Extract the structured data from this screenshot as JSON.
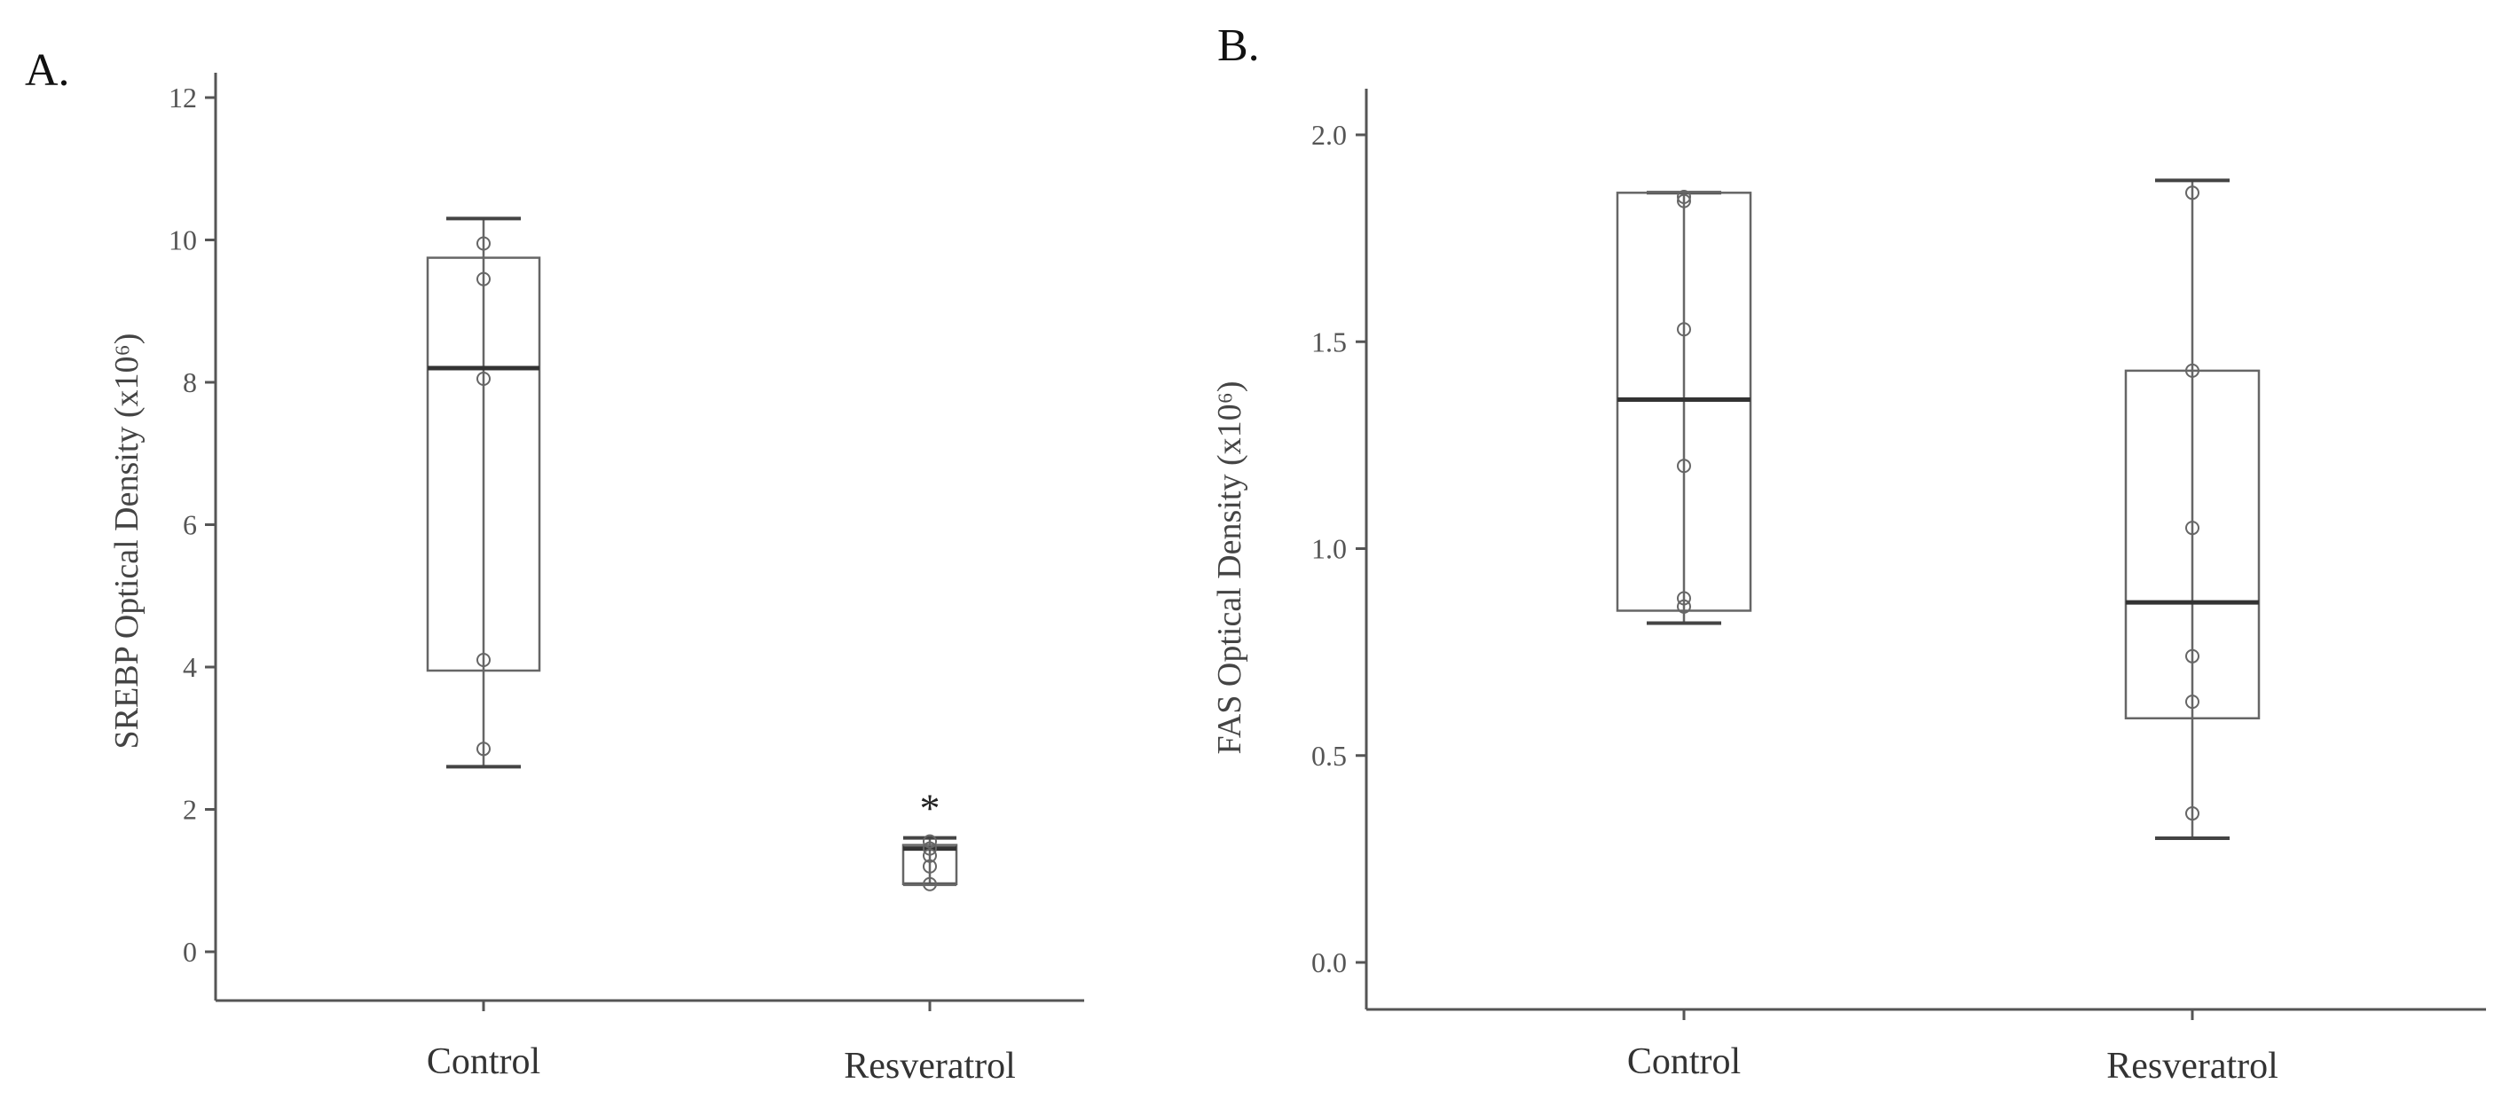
{
  "chart_data": [
    {
      "type": "box",
      "panel_label": "A.",
      "ylabel": "SREBP Optical Density (x10⁶)",
      "ylim": [
        0,
        12
      ],
      "yticks": [
        "0",
        "2",
        "4",
        "6",
        "8",
        "10",
        "12"
      ],
      "categories": [
        "Control",
        "Resveratrol"
      ],
      "boxes": [
        {
          "category": "Control",
          "min": 2.6,
          "q1": 3.95,
          "median": 8.2,
          "q3": 9.75,
          "max": 10.3,
          "points": [
            2.85,
            4.1,
            8.05,
            9.45,
            9.95
          ],
          "annotation": ""
        },
        {
          "category": "Resveratrol",
          "min": 0.95,
          "q1": 0.95,
          "median": 1.45,
          "q3": 1.5,
          "max": 1.6,
          "points": [
            0.95,
            1.2,
            1.35,
            1.45,
            1.55
          ],
          "annotation": "*"
        }
      ]
    },
    {
      "type": "box",
      "panel_label": "B.",
      "ylabel": "FAS Optical Density (x10⁶)",
      "ylim": [
        0,
        2
      ],
      "yticks": [
        "0.0",
        "0.5",
        "1.0",
        "1.5",
        "2.0"
      ],
      "categories": [
        "Control",
        "Resveratrol"
      ],
      "boxes": [
        {
          "category": "Control",
          "min": 0.82,
          "q1": 0.85,
          "median": 1.36,
          "q3": 1.86,
          "max": 1.86,
          "points": [
            0.86,
            0.88,
            1.2,
            1.53,
            1.84,
            1.85
          ],
          "annotation": ""
        },
        {
          "category": "Resveratrol",
          "min": 0.3,
          "q1": 0.59,
          "median": 0.87,
          "q3": 1.43,
          "max": 1.89,
          "points": [
            0.36,
            0.63,
            0.74,
            1.05,
            1.43,
            1.86
          ],
          "annotation": ""
        }
      ]
    }
  ]
}
